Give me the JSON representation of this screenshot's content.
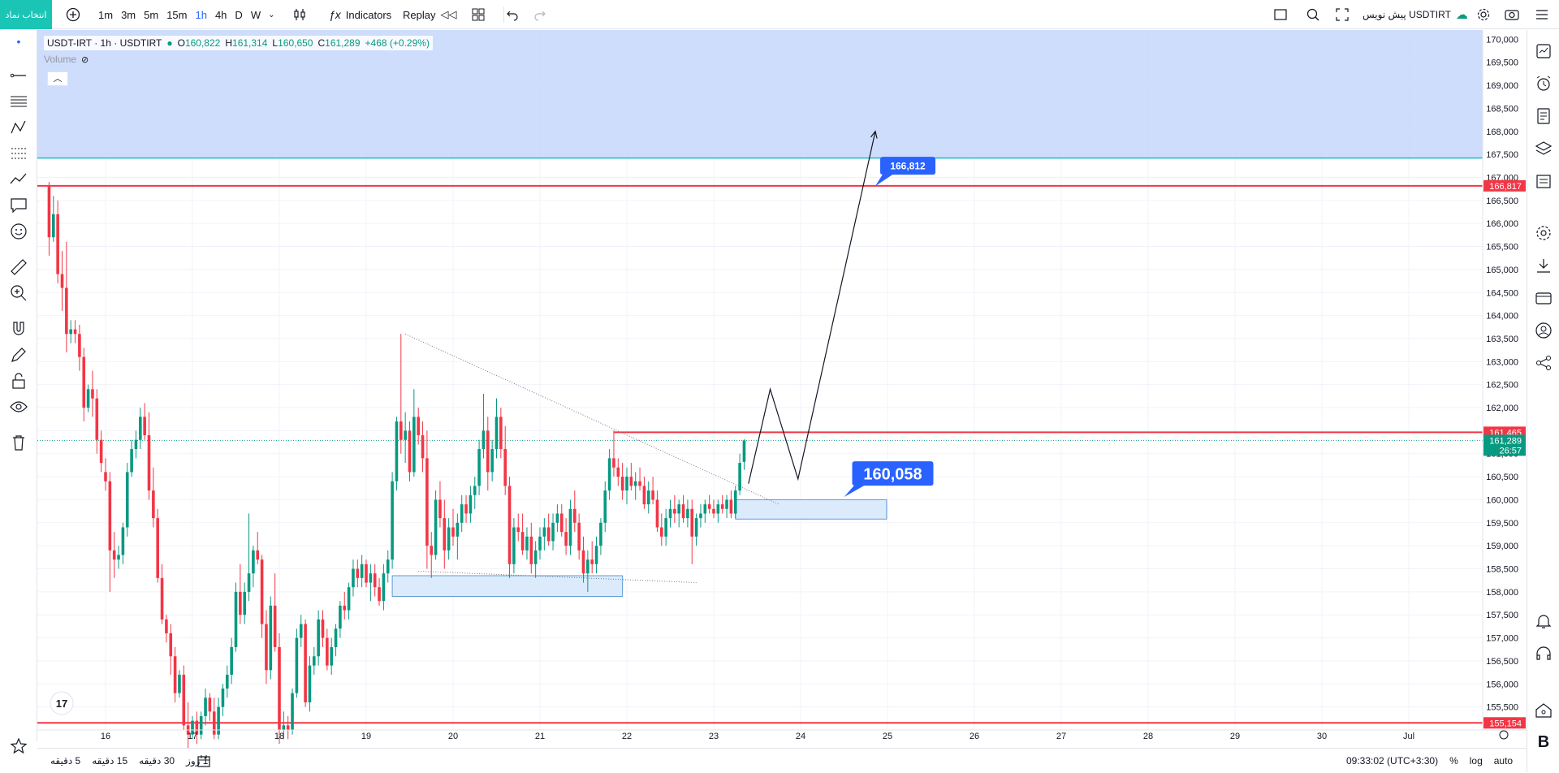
{
  "toolbar": {
    "symbol_button": "انتخاب نماد",
    "intervals": [
      "1m",
      "3m",
      "5m",
      "15m",
      "1h",
      "4h",
      "D",
      "W"
    ],
    "active_interval": "1h",
    "indicators_label": "Indicators",
    "replay_label": "Replay",
    "trade_label": "پیش نویس USDTIRT"
  },
  "legend": {
    "symbol": "USDT-IRT · 1h · USDTIRT",
    "open_label": "O",
    "open": "160,822",
    "high_label": "H",
    "high": "161,314",
    "low_label": "L",
    "low": "160,650",
    "close_label": "C",
    "close": "161,289",
    "change": "+468 (+0.29%)",
    "volume_label": "Volume"
  },
  "bottom": {
    "ranges": [
      "5 دقیقه",
      "15 دقیقه",
      "30 دقیقه",
      "1 روز"
    ],
    "clock": "09:33:02 (UTC+3:30)",
    "percent": "%",
    "log": "log",
    "auto": "auto"
  },
  "colors": {
    "up": "#089981",
    "down": "#f23645",
    "level_line": "#f23645",
    "zone_fill": "#c9d9fb",
    "accent": "#2962ff",
    "teal": "#1bc5b5"
  },
  "chart_data": {
    "type": "candlestick",
    "y_range": [
      155000,
      170200
    ],
    "x_labels": [
      "16",
      "17",
      "18",
      "19",
      "20",
      "21",
      "22",
      "23",
      "24",
      "25",
      "26",
      "27",
      "28",
      "29",
      "30",
      "Jul"
    ],
    "y_ticks": [
      155500,
      156000,
      156500,
      157000,
      157500,
      158000,
      158500,
      159000,
      159500,
      160000,
      160500,
      161000,
      161500,
      162000,
      162500,
      163000,
      163500,
      164000,
      164500,
      165000,
      165500,
      166000,
      166500,
      167000,
      167500,
      168000,
      168500,
      169000,
      169500,
      170000
    ],
    "price_tags": [
      {
        "value": 166817,
        "label": "166,817",
        "color": "#f23645"
      },
      {
        "value": 161465,
        "label": "161,465",
        "color": "#f23645"
      },
      {
        "value": 161289,
        "label": "161,289",
        "sub": "26:57",
        "color": "#089981"
      },
      {
        "value": 155154,
        "label": "155,154",
        "color": "#f23645"
      }
    ],
    "horizontal_levels": [
      166817,
      155154
    ],
    "resistance_ray": {
      "value": 161465,
      "from_day": 21.85
    },
    "supply_zone": {
      "from": 167420,
      "to": 170200
    },
    "zones": [
      {
        "x0": 19.3,
        "x1": 21.95,
        "y0": 157900,
        "y1": 158350
      },
      {
        "x0": 23.25,
        "x1": 24.99,
        "y0": 159580,
        "y1": 160000
      }
    ],
    "trendlines": [
      {
        "points": [
          [
            19.45,
            163600
          ],
          [
            23.75,
            159900
          ]
        ],
        "style": "dotted"
      },
      {
        "points": [
          [
            19.6,
            158450
          ],
          [
            22.8,
            158200
          ]
        ],
        "style": "dotted"
      }
    ],
    "projection": [
      [
        23.4,
        160350
      ],
      [
        23.65,
        162400
      ],
      [
        23.97,
        160450
      ],
      [
        24.86,
        168000
      ]
    ],
    "callouts": [
      {
        "label": "166,812",
        "x": 24.86,
        "y": 166812,
        "size": "small"
      },
      {
        "label": "160,058",
        "x": 24.5,
        "y": 160058,
        "size": "large"
      }
    ],
    "candles": [
      [
        15.35,
        166800,
        166900,
        165300,
        165700
      ],
      [
        15.4,
        165700,
        166600,
        165600,
        166200
      ],
      [
        15.45,
        166200,
        166500,
        164700,
        164900
      ],
      [
        15.5,
        164900,
        165400,
        164100,
        164600
      ],
      [
        15.55,
        164600,
        165600,
        163200,
        163600
      ],
      [
        15.6,
        163600,
        163900,
        163400,
        163700
      ],
      [
        15.65,
        163700,
        163900,
        163400,
        163600
      ],
      [
        15.7,
        163600,
        163800,
        162800,
        163100
      ],
      [
        15.75,
        163100,
        163300,
        161700,
        162000
      ],
      [
        15.8,
        162000,
        162500,
        161900,
        162400
      ],
      [
        15.85,
        162400,
        162800,
        161800,
        162200
      ],
      [
        15.9,
        162200,
        162400,
        161000,
        161300
      ],
      [
        15.95,
        161300,
        161500,
        160600,
        160800
      ],
      [
        16,
        160600,
        160900,
        160200,
        160400
      ],
      [
        16.05,
        160400,
        160600,
        158000,
        158900
      ],
      [
        16.1,
        158900,
        159300,
        158300,
        158700
      ],
      [
        16.15,
        158700,
        159000,
        158500,
        158800
      ],
      [
        16.2,
        158800,
        159500,
        158600,
        159400
      ],
      [
        16.25,
        159400,
        160800,
        159200,
        160600
      ],
      [
        16.3,
        160600,
        161300,
        160500,
        161100
      ],
      [
        16.35,
        161100,
        161500,
        160900,
        161300
      ],
      [
        16.4,
        161300,
        162000,
        161100,
        161800
      ],
      [
        16.45,
        161800,
        162100,
        161300,
        161400
      ],
      [
        16.5,
        161400,
        161900,
        160000,
        160200
      ],
      [
        16.55,
        160200,
        160700,
        159400,
        159600
      ],
      [
        16.6,
        159600,
        159800,
        158200,
        158300
      ],
      [
        16.65,
        158300,
        158600,
        157300,
        157400
      ],
      [
        16.7,
        157400,
        157500,
        156900,
        157100
      ],
      [
        16.75,
        157100,
        157300,
        156200,
        156600
      ],
      [
        16.8,
        156600,
        156800,
        155600,
        155800
      ],
      [
        16.85,
        155800,
        156300,
        155700,
        156200
      ],
      [
        16.9,
        156200,
        156400,
        155000,
        155100
      ],
      [
        16.95,
        155100,
        155600,
        154600,
        154900
      ],
      [
        17,
        154900,
        155300,
        154800,
        155200
      ],
      [
        17.05,
        155200,
        155400,
        154700,
        154900
      ],
      [
        17.1,
        154900,
        155400,
        154800,
        155300
      ],
      [
        17.15,
        155300,
        155900,
        155100,
        155700
      ],
      [
        17.2,
        155700,
        155800,
        155200,
        155400
      ],
      [
        17.25,
        155400,
        155700,
        154800,
        154900
      ],
      [
        17.3,
        154900,
        155700,
        154800,
        155500
      ],
      [
        17.35,
        155500,
        156000,
        155300,
        155900
      ],
      [
        17.4,
        155900,
        156400,
        155700,
        156200
      ],
      [
        17.45,
        156200,
        157000,
        156000,
        156800
      ],
      [
        17.5,
        156800,
        158200,
        156700,
        158000
      ],
      [
        17.55,
        158000,
        158600,
        157300,
        157500
      ],
      [
        17.6,
        157500,
        158200,
        157300,
        158000
      ],
      [
        17.65,
        158000,
        159700,
        157800,
        158400
      ],
      [
        17.7,
        158400,
        159000,
        158100,
        158900
      ],
      [
        17.75,
        158900,
        159300,
        158600,
        158700
      ],
      [
        17.8,
        158700,
        158800,
        157000,
        157300
      ],
      [
        17.85,
        157300,
        157600,
        156000,
        156300
      ],
      [
        17.9,
        156300,
        157900,
        156100,
        157700
      ],
      [
        17.95,
        157700,
        158400,
        156700,
        156800
      ],
      [
        18,
        156800,
        157100,
        154700,
        155000
      ],
      [
        18.05,
        155000,
        155400,
        154800,
        155100
      ],
      [
        18.1,
        155100,
        155300,
        154800,
        155000
      ],
      [
        18.15,
        155000,
        155900,
        154900,
        155800
      ],
      [
        18.2,
        155800,
        157200,
        155700,
        157000
      ],
      [
        18.25,
        157000,
        157500,
        156800,
        157300
      ],
      [
        18.3,
        157300,
        157400,
        155500,
        155600
      ],
      [
        18.35,
        155600,
        156600,
        155400,
        156400
      ],
      [
        18.4,
        156400,
        156800,
        156200,
        156600
      ],
      [
        18.45,
        156600,
        157600,
        156400,
        157400
      ],
      [
        18.5,
        157400,
        157600,
        156800,
        157000
      ],
      [
        18.55,
        157000,
        157200,
        156300,
        156400
      ],
      [
        18.6,
        156400,
        157000,
        156200,
        156800
      ],
      [
        18.65,
        156800,
        157300,
        156600,
        157200
      ],
      [
        18.7,
        157200,
        157800,
        157000,
        157700
      ],
      [
        18.75,
        157700,
        158000,
        157400,
        157600
      ],
      [
        18.8,
        157600,
        158200,
        157400,
        158100
      ],
      [
        18.85,
        158100,
        158700,
        157900,
        158500
      ],
      [
        18.9,
        158500,
        158700,
        158100,
        158300
      ],
      [
        18.95,
        158300,
        158800,
        158100,
        158600
      ],
      [
        19,
        158600,
        158700,
        158100,
        158200
      ],
      [
        19.05,
        158200,
        158600,
        157800,
        158400
      ],
      [
        19.1,
        158400,
        158600,
        157900,
        158100
      ],
      [
        19.15,
        158100,
        158300,
        157700,
        157800
      ],
      [
        19.2,
        157800,
        158600,
        157600,
        158400
      ],
      [
        19.25,
        158400,
        158900,
        158200,
        158700
      ],
      [
        19.3,
        158700,
        160600,
        158500,
        160400
      ],
      [
        19.35,
        160400,
        161800,
        160200,
        161700
      ],
      [
        19.4,
        161700,
        163600,
        161000,
        161300
      ],
      [
        19.45,
        161300,
        161900,
        160800,
        161500
      ],
      [
        19.5,
        161500,
        161700,
        160400,
        160600
      ],
      [
        19.55,
        160600,
        162400,
        160500,
        161800
      ],
      [
        19.6,
        161800,
        162000,
        161200,
        161400
      ],
      [
        19.65,
        161400,
        161700,
        160600,
        160900
      ],
      [
        19.7,
        160900,
        161500,
        158500,
        159000
      ],
      [
        19.75,
        159000,
        159300,
        158300,
        158800
      ],
      [
        19.8,
        158800,
        160200,
        158700,
        160000
      ],
      [
        19.85,
        160000,
        160400,
        159400,
        159600
      ],
      [
        19.9,
        159600,
        160000,
        158500,
        158900
      ],
      [
        19.95,
        158900,
        159600,
        158700,
        159400
      ],
      [
        20,
        159400,
        159800,
        159000,
        159200
      ],
      [
        20.05,
        159200,
        159700,
        158700,
        159500
      ],
      [
        20.1,
        159500,
        160100,
        159300,
        159900
      ],
      [
        20.15,
        159900,
        160100,
        159500,
        159700
      ],
      [
        20.2,
        159700,
        160300,
        159500,
        160100
      ],
      [
        20.25,
        160100,
        160500,
        159800,
        160300
      ],
      [
        20.3,
        160300,
        161300,
        160100,
        161100
      ],
      [
        20.35,
        161100,
        162300,
        160900,
        161500
      ],
      [
        20.4,
        161500,
        161800,
        160200,
        160600
      ],
      [
        20.45,
        160600,
        161300,
        160400,
        161100
      ],
      [
        20.5,
        161100,
        162200,
        160900,
        161800
      ],
      [
        20.55,
        161800,
        162000,
        160900,
        161100
      ],
      [
        20.6,
        161100,
        161600,
        160100,
        160300
      ],
      [
        20.65,
        160300,
        160500,
        158300,
        158600
      ],
      [
        20.7,
        158600,
        159600,
        158400,
        159400
      ],
      [
        20.75,
        159400,
        159700,
        159100,
        159300
      ],
      [
        20.8,
        159300,
        159700,
        158800,
        158900
      ],
      [
        20.85,
        158900,
        159400,
        158700,
        159200
      ],
      [
        20.9,
        159200,
        159500,
        158400,
        158600
      ],
      [
        20.95,
        158600,
        159100,
        158300,
        158900
      ],
      [
        21,
        158900,
        159400,
        158700,
        159200
      ],
      [
        21.05,
        159200,
        159600,
        158900,
        159400
      ],
      [
        21.1,
        159400,
        159700,
        159000,
        159100
      ],
      [
        21.15,
        159100,
        159700,
        158900,
        159500
      ],
      [
        21.2,
        159500,
        159900,
        159300,
        159700
      ],
      [
        21.25,
        159700,
        159900,
        159200,
        159300
      ],
      [
        21.3,
        159300,
        159600,
        158800,
        159000
      ],
      [
        21.35,
        159000,
        160000,
        158800,
        159800
      ],
      [
        21.4,
        159800,
        160200,
        159300,
        159500
      ],
      [
        21.45,
        159500,
        159700,
        158700,
        158900
      ],
      [
        21.5,
        158900,
        159200,
        158200,
        158400
      ],
      [
        21.55,
        158400,
        158900,
        158000,
        158700
      ],
      [
        21.6,
        158700,
        159100,
        158400,
        158600
      ],
      [
        21.65,
        158600,
        159200,
        158400,
        159000
      ],
      [
        21.7,
        159000,
        159600,
        158800,
        159500
      ],
      [
        21.75,
        159500,
        160400,
        159300,
        160200
      ],
      [
        21.8,
        160200,
        161100,
        160000,
        160900
      ],
      [
        21.85,
        160900,
        161500,
        160500,
        160700
      ],
      [
        21.9,
        160700,
        160900,
        160300,
        160500
      ],
      [
        21.95,
        160500,
        160800,
        160000,
        160200
      ],
      [
        22,
        160200,
        160700,
        159900,
        160500
      ],
      [
        22.05,
        160500,
        160800,
        160200,
        160300
      ],
      [
        22.1,
        160300,
        160600,
        160000,
        160400
      ],
      [
        22.15,
        160400,
        160700,
        160200,
        160300
      ],
      [
        22.2,
        160300,
        160500,
        159800,
        159900
      ],
      [
        22.25,
        159900,
        160400,
        159700,
        160200
      ],
      [
        22.3,
        160200,
        160500,
        159900,
        160000
      ],
      [
        22.35,
        160000,
        160200,
        159300,
        159400
      ],
      [
        22.4,
        159400,
        159700,
        159000,
        159200
      ],
      [
        22.45,
        159200,
        159800,
        159000,
        159600
      ],
      [
        22.5,
        159600,
        160000,
        159400,
        159800
      ],
      [
        22.55,
        159800,
        160100,
        159500,
        159700
      ],
      [
        22.6,
        159700,
        160000,
        159400,
        159900
      ],
      [
        22.65,
        159900,
        160100,
        159500,
        159600
      ],
      [
        22.7,
        159600,
        160000,
        159400,
        159800
      ],
      [
        22.75,
        159800,
        160000,
        158600,
        159200
      ],
      [
        22.8,
        159200,
        159700,
        159000,
        159600
      ],
      [
        22.85,
        159600,
        159900,
        159400,
        159700
      ],
      [
        22.9,
        159700,
        160000,
        159500,
        159900
      ],
      [
        22.95,
        159900,
        160100,
        159700,
        159800
      ],
      [
        23,
        159800,
        160000,
        159600,
        159700
      ],
      [
        23.05,
        159700,
        160000,
        159500,
        159900
      ],
      [
        23.1,
        159900,
        160100,
        159700,
        159800
      ],
      [
        23.15,
        159800,
        160100,
        159600,
        160000
      ],
      [
        23.2,
        160000,
        160200,
        159600,
        159700
      ],
      [
        23.25,
        159700,
        160300,
        159600,
        160200
      ],
      [
        23.3,
        160200,
        161000,
        160100,
        160800
      ],
      [
        23.35,
        160822,
        161314,
        160650,
        161289
      ]
    ]
  }
}
